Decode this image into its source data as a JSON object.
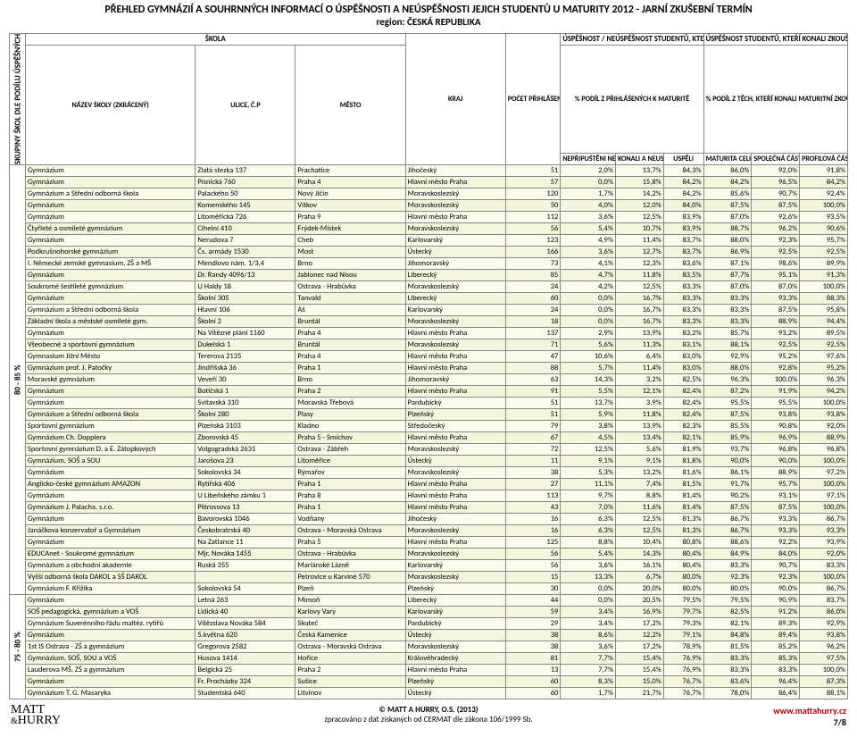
{
  "title": "PŘEHLED GYMNÁZIÍ A SOUHRNNÝCH INFORMACÍ O ÚSPĚŠNOSTI A NEÚSPĚŠNOSTI JEJICH STUDENTŮ U MATURITY 2012 - JARNÍ ZKUŠEBNÍ TERMÍN",
  "subtitle": "region: ČESKÁ REPUBLIKA",
  "header": {
    "group_col": "SKUPINY ŠKOL DLE PODÍLU ÚSPĚŠNÝCH",
    "skola": "ŠKOLA",
    "nazev": "NÁZEV ŠKOLY (ZKRÁCENÝ)",
    "ulice": "ULICE, Č.P",
    "mesto": "MĚSTO",
    "kraj": "KRAJ",
    "pocet": "POČET PŘIHLÁŠENÝCH K MATURITĚ",
    "usp_neusp": "ÚSPĚŠNOST / NEÚSPĚŠNOST STUDENTŮ, KTEŘÍ SE K MATURITĚ PŘIHLÁSILI",
    "pct_prihlas": "% PODÍL Z PŘIHLÁŠENÝCH K MATURITĚ",
    "neprip": "NEPŘIPUŠTĚNI NEKONALI",
    "konali_neusp": "KONALI A NEUSPĚLI",
    "uspeli": "USPĚLI",
    "usp_konali": "ÚSPĚŠNOST STUDENTŮ, KTEŘÍ KONALI ZKOUŠKY",
    "pct_konali": "% PODÍL Z TĚCH, KTEŘÍ KONALI MATURITNÍ ZKOUŠKU / PŘÍSLUŠNOU ČÁST",
    "mat_celkem": "MATURITA CELKEM",
    "spol_cast": "SPOLEČNÁ ČÁST",
    "prof_cast": "PROFILOVÁ ČÁST"
  },
  "groups": [
    {
      "label": "80 - 85 %",
      "rows": [
        [
          "Gymnázium",
          "Zlatá stezka 137",
          "Prachatice",
          "Jihočeský",
          "51",
          "2,0%",
          "13,7%",
          "84,3%",
          "86,0%",
          "92,0%",
          "91,8%"
        ],
        [
          "Gymnázium",
          "Písnická 760",
          "Praha 4",
          "Hlavní město Praha",
          "57",
          "0,0%",
          "15,8%",
          "84,2%",
          "84,2%",
          "96,5%",
          "84,2%"
        ],
        [
          "Gymnázium a Střední odborná škola",
          "Palackého 50",
          "Nový Jičín",
          "Moravskoslezský",
          "120",
          "1,7%",
          "14,2%",
          "84,2%",
          "85,6%",
          "90,7%",
          "92,4%"
        ],
        [
          "Gymnázium",
          "Komenského 145",
          "Vítkov",
          "Moravskoslezský",
          "50",
          "4,0%",
          "12,0%",
          "84,0%",
          "87,5%",
          "87,5%",
          "100,0%"
        ],
        [
          "Gymnázium",
          "Litoměřická 726",
          "Praha 9",
          "Hlavní město Praha",
          "112",
          "3,6%",
          "12,5%",
          "83,9%",
          "87,0%",
          "92,6%",
          "93,5%"
        ],
        [
          "Čtyřleté a osmileté gymnázium",
          "Cihelní 410",
          "Frýdek-Místek",
          "Moravskoslezský",
          "56",
          "5,4%",
          "10,7%",
          "83,9%",
          "88,7%",
          "96,2%",
          "90,6%"
        ],
        [
          "Gymnázium",
          "Nerudova 7",
          "Cheb",
          "Karlovarský",
          "123",
          "4,9%",
          "11,4%",
          "83,7%",
          "88,0%",
          "92,3%",
          "95,7%"
        ],
        [
          "Podkrušnohorské gymnázium",
          "Čs. armády 1530",
          "Most",
          "Ústecký",
          "166",
          "3,6%",
          "12,7%",
          "83,7%",
          "86,9%",
          "92,5%",
          "92,5%"
        ],
        [
          "I. Německé zemské gymnasium, ZŠ a MŠ",
          "Mendlovo nám. 1/3,4",
          "Brno",
          "Jihomoravský",
          "73",
          "4,1%",
          "12,3%",
          "83,6%",
          "87,1%",
          "98,6%",
          "89,9%"
        ],
        [
          "Gymnázium",
          "Dr. Randy 4096/13",
          "Jablonec nad Nisou",
          "Liberecký",
          "85",
          "4,7%",
          "11,8%",
          "83,5%",
          "87,7%",
          "95,1%",
          "91,3%"
        ],
        [
          "Soukromé šestileté gymnázium",
          "U Haldy 18",
          "Ostrava - Hrabůvka",
          "Moravskoslezský",
          "24",
          "4,2%",
          "12,5%",
          "83,3%",
          "87,0%",
          "87,0%",
          "100,0%"
        ],
        [
          "Gymnázium",
          "Školní 305",
          "Tanvald",
          "Liberecký",
          "60",
          "0,0%",
          "16,7%",
          "83,3%",
          "83,3%",
          "93,3%",
          "88,3%"
        ],
        [
          "Gymnázium a Střední odborná škola",
          "Hlavní 106",
          "Aš",
          "Karlovarský",
          "24",
          "0,0%",
          "16,7%",
          "83,3%",
          "83,3%",
          "87,5%",
          "95,8%"
        ],
        [
          "Základní škola a městské osmileté gym.",
          "Školní 2",
          "Bruntál",
          "Moravskoslezský",
          "18",
          "0,0%",
          "16,7%",
          "83,3%",
          "83,3%",
          "88,9%",
          "94,4%"
        ],
        [
          "Gymnázium",
          "Na Vítězné pláni 1160",
          "Praha 4",
          "Hlavní město Praha",
          "137",
          "2,9%",
          "13,9%",
          "83,2%",
          "85,7%",
          "93,2%",
          "89,5%"
        ],
        [
          "Všeobecné a sportovní gymnázium",
          "Dukelská 1",
          "Bruntál",
          "Moravskoslezský",
          "71",
          "5,6%",
          "11,3%",
          "83,1%",
          "88,1%",
          "92,5%",
          "92,5%"
        ],
        [
          "Gymnasium Jižní Město",
          "Tererova 2135",
          "Praha 4",
          "Hlavní město Praha",
          "47",
          "10,6%",
          "6,4%",
          "83,0%",
          "92,9%",
          "95,2%",
          "97,6%"
        ],
        [
          "Gymnázium prof. J. Patočky",
          "Jindřišská 36",
          "Praha 1",
          "Hlavní město Praha",
          "88",
          "5,7%",
          "11,4%",
          "83,0%",
          "88,0%",
          "92,8%",
          "95,2%"
        ],
        [
          "Moravské gymnázium",
          "Veveří 30",
          "Brno",
          "Jihomoravský",
          "63",
          "14,3%",
          "3,2%",
          "82,5%",
          "96,3%",
          "100,0%",
          "96,3%"
        ],
        [
          "Gymnázium",
          "Botičská 1",
          "Praha 2",
          "Hlavní město Praha",
          "91",
          "5,5%",
          "12,1%",
          "82,4%",
          "87,2%",
          "91,9%",
          "94,2%"
        ],
        [
          "Gymnázium",
          "Svitavská 310",
          "Moravská Třebová",
          "Pardubický",
          "51",
          "13,7%",
          "3,9%",
          "82,4%",
          "95,5%",
          "95,5%",
          "100,0%"
        ],
        [
          "Gymnázium a Střední odborná škola",
          "Školní 280",
          "Plasy",
          "Plzeňský",
          "51",
          "5,9%",
          "11,8%",
          "82,4%",
          "87,5%",
          "93,8%",
          "93,8%"
        ],
        [
          "Sportovní gymnázium",
          "Plzeňská 3103",
          "Kladno",
          "Středočeský",
          "79",
          "3,8%",
          "13,9%",
          "82,3%",
          "85,5%",
          "90,8%",
          "92,0%"
        ],
        [
          "Gymnázium Ch. Dopplera",
          "Zborovská 45",
          "Praha 5 - Smíchov",
          "Hlavní město Praha",
          "67",
          "4,5%",
          "13,4%",
          "82,1%",
          "85,9%",
          "96,9%",
          "88,9%"
        ],
        [
          "Sportovní gymnázium D. a E. Zátopkových",
          "Volgogradská 2631",
          "Ostrava - Zábřeh",
          "Moravskoslezský",
          "72",
          "12,5%",
          "5,6%",
          "81,9%",
          "93,7%",
          "96,8%",
          "96,8%"
        ],
        [
          "Gymnázium, SOŠ a SOU",
          "Jarošova 23",
          "Litoměřice",
          "Ústecký",
          "11",
          "9,1%",
          "9,1%",
          "81,8%",
          "90,0%",
          "90,0%",
          "100,0%"
        ],
        [
          "Gymnázium",
          "Sokolovská 34",
          "Rýmařov",
          "Moravskoslezský",
          "38",
          "5,3%",
          "13,2%",
          "81,6%",
          "86,1%",
          "88,9%",
          "97,2%"
        ],
        [
          "Anglicko-české gymnázium AMAZON",
          "Rytířská 406",
          "Praha 1",
          "Hlavní město Praha",
          "27",
          "11,1%",
          "7,4%",
          "81,5%",
          "91,7%",
          "95,7%",
          "100,0%"
        ],
        [
          "Gymnázium",
          "U Libeňského zámku 1",
          "Praha 8",
          "Hlavní město Praha",
          "113",
          "9,7%",
          "8,8%",
          "81,4%",
          "90,2%",
          "93,1%",
          "97,1%"
        ],
        [
          "Gymnázium J. Palacha, s.r.o.",
          "Pštrossova 13",
          "Praha 1",
          "Hlavní město Praha",
          "43",
          "7,0%",
          "11,6%",
          "81,4%",
          "87,5%",
          "87,5%",
          "100,0%"
        ],
        [
          "Gymnázium",
          "Bavorovská 1046",
          "Vodňany",
          "Jihočeský",
          "16",
          "6,3%",
          "12,5%",
          "81,3%",
          "86,7%",
          "93,3%",
          "86,7%"
        ],
        [
          "Janáčkova konzervatoř a Gymnázium",
          "Českobratrská 40",
          "Ostrava - Moravská Ostrava",
          "Moravskoslezský",
          "16",
          "6,3%",
          "12,5%",
          "81,3%",
          "86,7%",
          "93,3%",
          "93,3%"
        ],
        [
          "Gymnázium",
          "Na Zatlance 11",
          "Praha 5",
          "Hlavní město Praha",
          "125",
          "8,8%",
          "10,4%",
          "80,8%",
          "88,6%",
          "92,2%",
          "93,9%"
        ],
        [
          "EDUCAnet - Soukromé gymnázium",
          "Mjr. Nováka 1455",
          "Ostrava - Hrabůvka",
          "Moravskoslezský",
          "56",
          "5,4%",
          "14,3%",
          "80,4%",
          "84,9%",
          "84,0%",
          "92,0%"
        ],
        [
          "Gymnázium a obchodní akademie",
          "Ruská 355",
          "Mariánské Lázně",
          "Karlovarský",
          "56",
          "3,6%",
          "16,1%",
          "80,4%",
          "83,3%",
          "90,7%",
          "83,3%"
        ],
        [
          "Vyšší odborná škola DAKOL a SŠ DAKOL",
          "",
          "Petrovice u Karviné 570",
          "Moravskoslezský",
          "15",
          "13,3%",
          "6,7%",
          "80,0%",
          "92,3%",
          "92,3%",
          "100,0%"
        ],
        [
          "Gymnázium F. Křižíka",
          "Sokolovská 54",
          "Plzeň",
          "Plzeňský",
          "30",
          "0,0%",
          "20,0%",
          "80,0%",
          "80,0%",
          "90,0%",
          "86,7%"
        ]
      ]
    },
    {
      "label": "75 - 80 %",
      "rows": [
        [
          "Gymnázium",
          "Letná 263",
          "Mimoň",
          "Liberecký",
          "44",
          "0,0%",
          "20,5%",
          "79,5%",
          "79,5%",
          "90,9%",
          "83,7%"
        ],
        [
          "SOŠ pedagogická, gymnázium a VOŠ",
          "Lidická 40",
          "Karlovy Vary",
          "Karlovarský",
          "59",
          "3,4%",
          "16,9%",
          "79,7%",
          "82,5%",
          "91,2%",
          "86,0%"
        ],
        [
          "Gymnázium Suverénního řádu maltéz. rytířů",
          "Vítězslava Nováka 584",
          "Skuteč",
          "Pardubický",
          "29",
          "3,4%",
          "17,2%",
          "79,3%",
          "82,1%",
          "89,3%",
          "92,9%"
        ],
        [
          "Gymnázium",
          "5.května 620",
          "Česká Kamenice",
          "Ústecký",
          "38",
          "8,6%",
          "12,2%",
          "79,1%",
          "84,8%",
          "89,4%",
          "93,8%"
        ],
        [
          "1st IS Ostrava - ZŠ a gymnázium",
          "Gregorova 2582",
          "Ostrava - Moravská Ostrava",
          "Moravskoslezský",
          "38",
          "3,6%",
          "17,2%",
          "78,9%",
          "81,5%",
          "85,2%",
          "96,2%"
        ],
        [
          "Gymnázium, SOŠ, SOU a VOŠ",
          "Husova 1414",
          "Hořice",
          "Královéhradecký",
          "81",
          "7,7%",
          "15,4%",
          "76,9%",
          "83,3%",
          "85,3%",
          "97,5%"
        ],
        [
          "Lauderova MŠ, ZŠ a gymnázium",
          "Belgická 25",
          "Praha 2",
          "Hlavní město Praha",
          "13",
          "7,7%",
          "15,4%",
          "76,9%",
          "83,3%",
          "83,3%",
          "100,0%"
        ],
        [
          "Gymnázium",
          "Fr. Procházky 324",
          "Sušice",
          "Plzeňský",
          "60",
          "8,3%",
          "15,0%",
          "76,7%",
          "83,6%",
          "96,4%",
          "87,3%"
        ],
        [
          "Gymnázium T. G. Masaryka",
          "Studentská 640",
          "Litvínov",
          "Ústecký",
          "60",
          "1,7%",
          "21,7%",
          "76,7%",
          "78,0%",
          "86,4%",
          "88,1%"
        ]
      ]
    }
  ],
  "footer": {
    "logo1": "MATT",
    "logo2": "HURRY",
    "c1": "© MATT A HURRY, O.S. (2013)",
    "c2": "zpracováno z dat získaných od CERMAT dle zákona 106/1999 Sb.",
    "url": "www.mattahurry.cz",
    "page": "7/8"
  },
  "colwidths": {
    "group": 16,
    "nazev": 170,
    "ulice": 100,
    "mesto": 110,
    "kraj": 100,
    "pocet": 55,
    "p1": 55,
    "p2": 48,
    "p3": 40,
    "m1": 48,
    "m2": 48,
    "m3": 48
  },
  "colors": {
    "row0": "#fafbeb",
    "row1": "#f3f5dc",
    "link": "#c00000"
  }
}
